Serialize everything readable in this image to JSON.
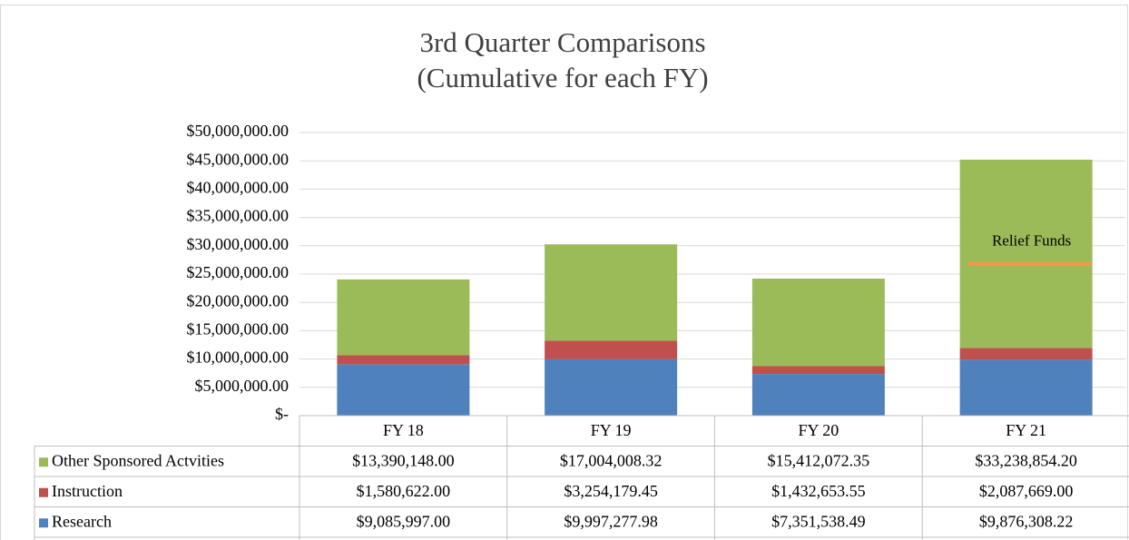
{
  "chart_data": {
    "type": "stacked_bar",
    "title": "3rd Quarter Comparisons",
    "subtitle": "(Cumulative for each FY)",
    "categories": [
      "FY 18",
      "FY 19",
      "FY 20",
      "FY 21"
    ],
    "series": [
      {
        "name": "Research",
        "color": "#4f81bd",
        "values": [
          9085997.0,
          9997277.98,
          7351538.49,
          9876308.22
        ],
        "value_labels": [
          "$9,085,997.00",
          "$9,997,277.98",
          "$7,351,538.49",
          "$9,876,308.22"
        ]
      },
      {
        "name": "Instruction",
        "color": "#c0504d",
        "values": [
          1580622.0,
          3254179.45,
          1432653.55,
          2087669.0
        ],
        "value_labels": [
          "$1,580,622.00",
          "$3,254,179.45",
          "$1,432,653.55",
          "$2,087,669.00"
        ]
      },
      {
        "name": "Other Sponsored Actvities",
        "color": "#9bbb59",
        "values": [
          13390148.0,
          17004008.32,
          15412072.35,
          33238854.2
        ],
        "value_labels": [
          "$13,390,148.00",
          "$17,004,008.32",
          "$15,412,072.35",
          "$33,238,854.20"
        ]
      }
    ],
    "ylim": [
      0,
      50000000
    ],
    "yticks": [
      {
        "value": 0,
        "label": "$-"
      },
      {
        "value": 5000000,
        "label": "$5,000,000.00"
      },
      {
        "value": 10000000,
        "label": "$10,000,000.00"
      },
      {
        "value": 15000000,
        "label": "$15,000,000.00"
      },
      {
        "value": 20000000,
        "label": "$20,000,000.00"
      },
      {
        "value": 25000000,
        "label": "$25,000,000.00"
      },
      {
        "value": 30000000,
        "label": "$30,000,000.00"
      },
      {
        "value": 35000000,
        "label": "$35,000,000.00"
      },
      {
        "value": 40000000,
        "label": "$40,000,000.00"
      },
      {
        "value": 45000000,
        "label": "$45,000,000.00"
      },
      {
        "value": 50000000,
        "label": "$50,000,000.00"
      }
    ],
    "grid": true,
    "annotation": {
      "text": "Relief Funds",
      "category": 3,
      "value": 26800000,
      "color": "#f79646"
    }
  }
}
